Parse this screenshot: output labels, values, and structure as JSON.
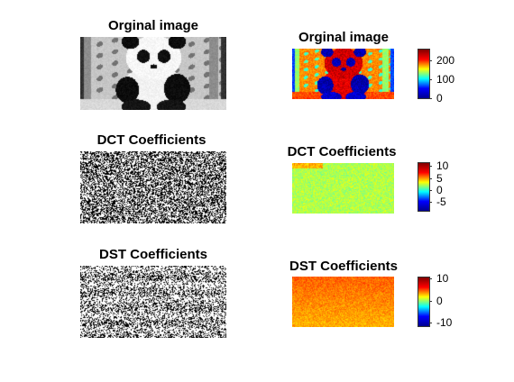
{
  "figure": {
    "left_column": {
      "panels": [
        {
          "title": "Orginal image",
          "content": "grayscale panda image"
        },
        {
          "title": "DCT Coefficients",
          "content": "binary noise pattern"
        },
        {
          "title": "DST Coefficients",
          "content": "binary noise pattern"
        }
      ]
    },
    "right_column": {
      "panels": [
        {
          "title": "Orginal image",
          "colormap": "jet",
          "colorbar_ticks": [
            "200",
            "100",
            "0"
          ]
        },
        {
          "title": "DCT Coefficients",
          "colormap": "jet",
          "colorbar_ticks": [
            "10",
            "5",
            "0",
            "-5"
          ]
        },
        {
          "title": "DST Coefficients",
          "colormap": "jet",
          "colorbar_ticks": [
            "10",
            "0",
            "-10"
          ]
        }
      ]
    }
  },
  "colors": {
    "background": "#ffffff",
    "jet": [
      "#00008f",
      "#0000ff",
      "#00ffff",
      "#ffff00",
      "#ff0000",
      "#800000"
    ]
  }
}
